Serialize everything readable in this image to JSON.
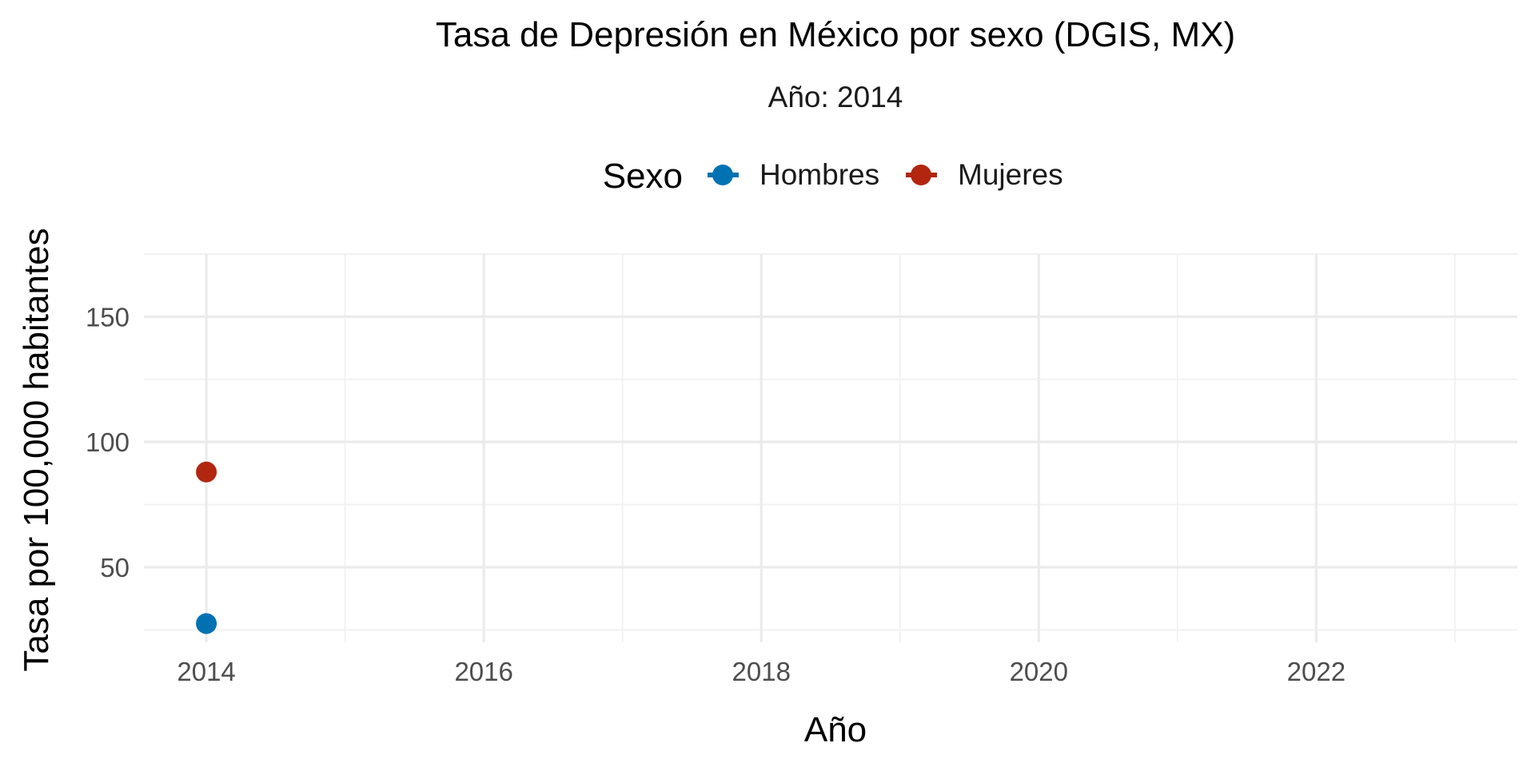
{
  "chart_data": {
    "type": "scatter",
    "title": "Tasa de Depresión en México por sexo (DGIS, MX)",
    "subtitle": "Año: 2014",
    "xlabel": "Año",
    "ylabel": "Tasa por 100,000 habitantes",
    "xlim": [
      2013.55,
      2023.45
    ],
    "ylim": [
      20,
      175
    ],
    "x_ticks": [
      2014,
      2016,
      2018,
      2020,
      2022
    ],
    "x_minor_ticks": [
      2015,
      2017,
      2019,
      2021,
      2023
    ],
    "y_ticks": [
      50,
      100,
      150
    ],
    "y_minor_ticks": [
      25,
      75,
      125,
      175
    ],
    "grid": true,
    "legend": {
      "title": "Sexo",
      "position": "top"
    },
    "series": [
      {
        "name": "Hombres",
        "color": "#0072B2",
        "points": [
          {
            "x": 2014,
            "y": 27.5
          }
        ]
      },
      {
        "name": "Mujeres",
        "color": "#B2260F",
        "points": [
          {
            "x": 2014,
            "y": 88
          }
        ]
      }
    ]
  }
}
